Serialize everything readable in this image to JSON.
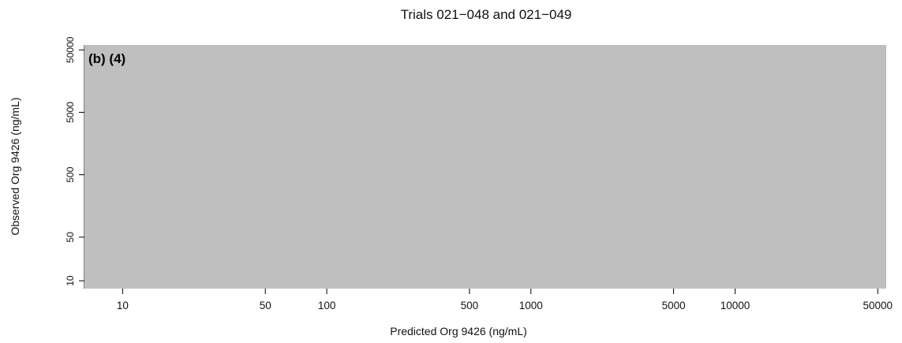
{
  "chart_data": {
    "type": "scatter",
    "title": "Trials 021−048 and 021−049",
    "xlabel": "Predicted Org 9426 (ng/mL)",
    "ylabel": "Observed Org 9426 (ng/mL)",
    "panel_label": "(b) (4)",
    "x_scale": "log",
    "y_scale": "log",
    "xlim": [
      6.5,
      55000
    ],
    "ylim": [
      7.5,
      60000
    ],
    "x_ticks": [
      10,
      50,
      100,
      500,
      1000,
      5000,
      10000,
      50000
    ],
    "x_tick_labels": [
      "10",
      "50",
      "100",
      "500",
      "1000",
      "5000",
      "10000",
      "50000"
    ],
    "y_ticks": [
      10,
      50,
      500,
      5000,
      50000
    ],
    "y_tick_labels": [
      "10",
      "50",
      "500",
      "5000",
      "50000"
    ],
    "plot_region_redacted": true,
    "redaction_color": "#bfbfbf",
    "series": []
  }
}
